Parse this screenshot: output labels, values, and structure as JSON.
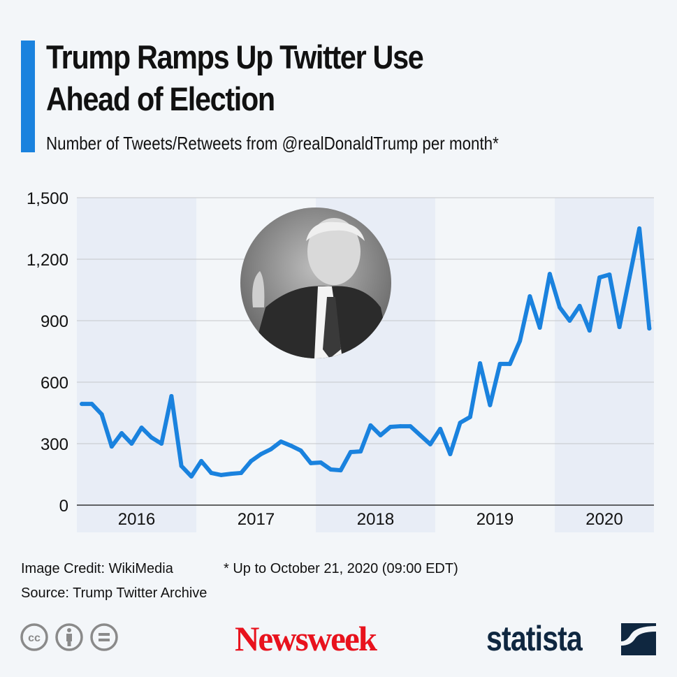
{
  "header": {
    "title_line1": "Trump Ramps Up Twitter Use",
    "title_line2": "Ahead of Election",
    "subtitle": "Number of Tweets/Retweets from @realDonaldTrump per month*"
  },
  "colors": {
    "accent": "#1a82de",
    "line": "#1a82de",
    "band": "#e8edf6",
    "background": "#f3f6f9",
    "newsweek_red": "#e8121d",
    "statista_navy": "#0f2740"
  },
  "chart_data": {
    "type": "line",
    "title": "Number of Tweets/Retweets from @realDonaldTrump per month*",
    "xlabel": "",
    "ylabel": "",
    "ylim": [
      0,
      1500
    ],
    "yticks": [
      0,
      300,
      600,
      900,
      1200,
      1500
    ],
    "ytick_labels": [
      "0",
      "300",
      "600",
      "900",
      "1,200",
      "1,500"
    ],
    "grid": true,
    "x_years": [
      "2016",
      "2017",
      "2018",
      "2019",
      "2020"
    ],
    "shaded_years": [
      "2016",
      "2018",
      "2020"
    ],
    "x_start": "2016-01",
    "x_end": "2020-10",
    "series": [
      {
        "name": "Tweets/Retweets per month",
        "values": [
          494,
          494,
          443,
          286,
          351,
          300,
          378,
          330,
          300,
          532,
          191,
          140,
          215,
          157,
          147,
          153,
          157,
          215,
          249,
          273,
          310,
          290,
          266,
          205,
          208,
          174,
          170,
          259,
          262,
          389,
          341,
          382,
          385,
          385,
          341,
          297,
          372,
          249,
          402,
          430,
          692,
          488,
          689,
          689,
          801,
          1019,
          866,
          1128,
          965,
          900,
          972,
          852,
          1111,
          1125,
          869,
          1110,
          1350,
          862
        ]
      }
    ]
  },
  "image": {
    "alt": "Portrait of Donald Trump"
  },
  "footer": {
    "image_credit": "Image Credit: WikiMedia",
    "note": "* Up to October 21, 2020 (09:00 EDT)",
    "source": "Source: Trump Twitter Archive",
    "cc_icons": [
      "cc-icon",
      "attribution-icon",
      "no-derivatives-icon"
    ],
    "newsweek": "Newsweek",
    "statista": "statista"
  }
}
